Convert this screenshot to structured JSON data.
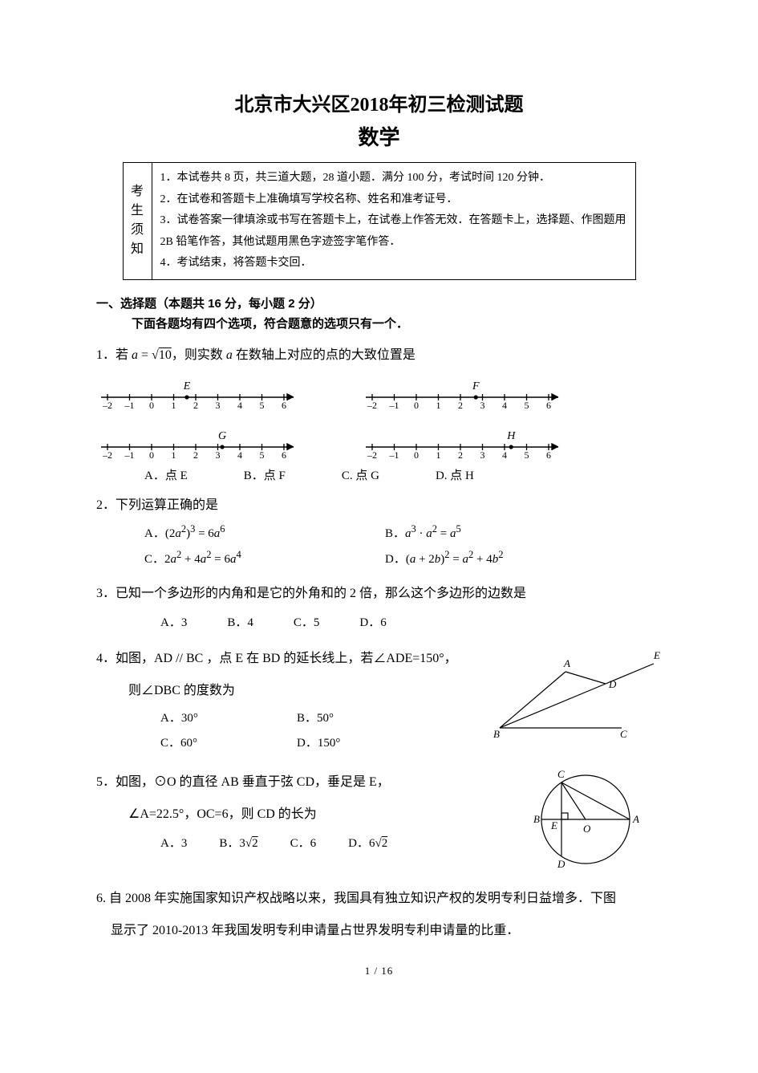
{
  "title_line1": "北京市大兴区2018年初三检测试题",
  "title_line2": "数学",
  "notice_label_chars": [
    "考",
    "生",
    "须",
    "知"
  ],
  "notice_items": [
    "1．本试卷共 8 页，共三道大题，28 道小题．满分 100 分，考试时间 120 分钟．",
    "2．在试卷和答题卡上准确填写学校名称、姓名和准考证号．",
    "3．试卷答案一律填涂或书写在答题卡上，在试卷上作答无效．在答题卡上，选择题、作图题用 2B 铅笔作答，其他试题用黑色字迹签字笔作答．",
    "4．考试结束，将答题卡交回．"
  ],
  "section1_line1": "一、选择题（本题共 16 分，每小题 2 分）",
  "section1_line2": "下面各题均有四个选项，符合题意的选项只有一个．",
  "numberline": {
    "min": -2,
    "max": 6,
    "ticks": [
      -2,
      -1,
      0,
      1,
      2,
      3,
      4,
      5,
      6
    ],
    "points": {
      "E": 1.6,
      "F": 2.7,
      "G": 3.2,
      "H": 4.3
    },
    "colors": {
      "axis": "#000000"
    }
  },
  "q1": {
    "text_pre": "1．若 ",
    "text_mid": "，则实数 ",
    "text_post": " 在数轴上对应的点的大致位置是",
    "opts": {
      "A": "A．点 E",
      "B": "B．点 F",
      "C": "C. 点 G",
      "D": "D. 点 H"
    }
  },
  "q2": {
    "text": "2．下列运算正确的是",
    "A_html": "A．(2a²)³ = 6a⁶",
    "B_html": "B．a³ · a² = a⁵",
    "C_html": "C．2a² + 4a² = 6a⁴",
    "D_html": "D．(a + 2b)² = a² + 4b²"
  },
  "q3": {
    "text": "3．已知一个多边形的内角和是它的外角和的 2 倍，那么这个多边形的边数是",
    "A": "A．3",
    "B": "B．4",
    "C": "C．5",
    "D": "D．6"
  },
  "q4": {
    "line1": "4．如图，AD // BC ，点 E 在 BD 的延长线上，若∠ADE=150°，",
    "line2": "则∠DBC 的度数为",
    "A": "A．30°",
    "B": "B．50°",
    "C": "C．60°",
    "D": "D．150°"
  },
  "q5": {
    "line1": "5．如图，⊙O 的直径 AB 垂直于弦 CD，垂足是 E，",
    "line2": "∠A=22.5°，OC=6，则 CD 的长为",
    "A": "A．3",
    "B": "B．3√2",
    "C": "C．6",
    "D": "D．6√2"
  },
  "q6": {
    "line1": "6. 自 2008 年实施国家知识产权战略以来，我国具有独立知识产权的发明专利日益增多．下图",
    "line2": "显示了 2010-2013 年我国发明专利申请量占世界发明专利申请量的比重．"
  },
  "page_num": "1 / 16",
  "style": {
    "diagram_stroke": "#000000",
    "diagram_fill": "none"
  }
}
